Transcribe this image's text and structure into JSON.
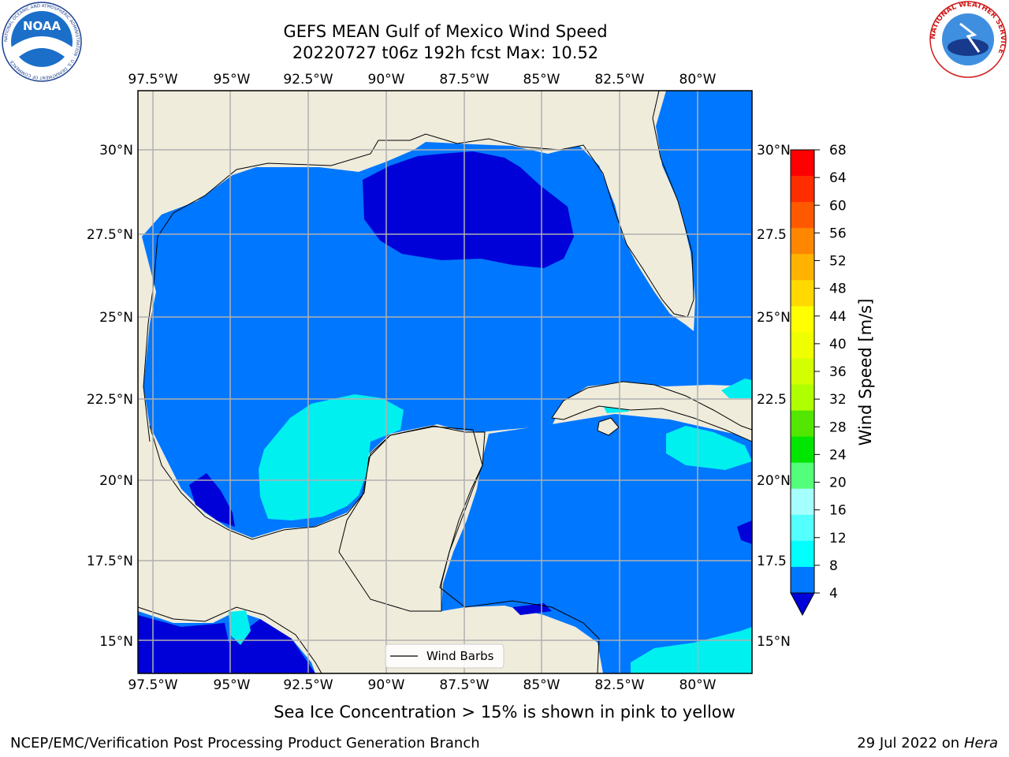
{
  "title_line1": "GEFS MEAN Gulf of Mexico Wind Speed",
  "title_line2": "20220727 t06z 192h fcst   Max: 10.52",
  "caption": "Sea Ice Concentration > 15% is shown in pink to yellow",
  "footer_left": "NCEP/EMC/Verification Post Processing Product Generation Branch",
  "footer_right_date": "29 Jul 2022 on",
  "footer_right_host": "Hera",
  "logos": {
    "noaa_text": "NOAA",
    "noaa_ring_text": "NATIONAL OCEANIC AND ATMOSPHERIC ADMINISTRATION · U.S. DEPARTMENT OF COMMERCE",
    "nws_ring_text": "NATIONAL WEATHER SERVICE"
  },
  "map": {
    "lon_labels": [
      "97.5°W",
      "95°W",
      "92.5°W",
      "90°W",
      "87.5°W",
      "85°W",
      "82.5°W",
      "80°W"
    ],
    "lat_labels_left": [
      "30°N",
      "27.5°N",
      "25°N",
      "22.5°N",
      "20°N",
      "17.5°N",
      "15°N"
    ],
    "lat_labels_right": [
      "30°N",
      "27.5",
      "25°N",
      "22.5",
      "20°N",
      "17.5",
      "15°N"
    ],
    "legend_label": "Wind Barbs",
    "colors": {
      "land": "#efecdc",
      "water_dark": "#0000d8",
      "water_mid": "#0077ff",
      "water_light": "#00f0f0"
    }
  },
  "colorbar": {
    "label": "Wind Speed [m/s]",
    "ticks": [
      "68",
      "64",
      "60",
      "56",
      "52",
      "48",
      "44",
      "40",
      "36",
      "32",
      "28",
      "24",
      "20",
      "16",
      "12",
      "8",
      "4"
    ],
    "colors": [
      "#ff0000",
      "#ff2d00",
      "#ff5900",
      "#ff8700",
      "#ffb300",
      "#ffd900",
      "#ffff00",
      "#f0ff00",
      "#d4ff00",
      "#b0ff00",
      "#53e600",
      "#00e600",
      "#53ff7a",
      "#a6ffff",
      "#53ffff",
      "#00ffff",
      "#0077ff"
    ],
    "extend_color": "#0000d8"
  }
}
